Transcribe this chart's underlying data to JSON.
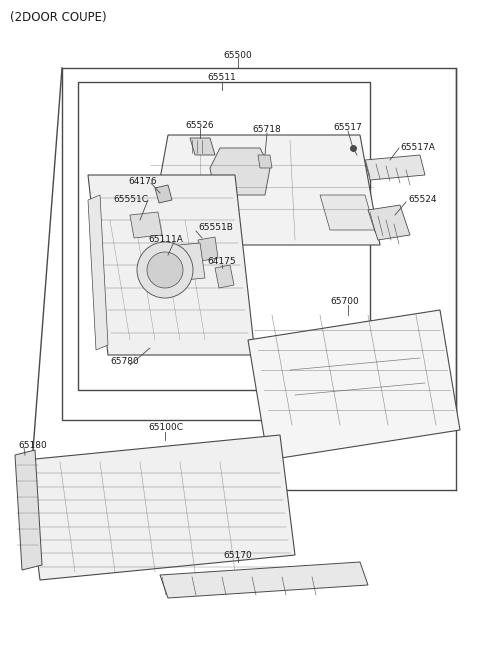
{
  "title": "(2DOOR COUPE)",
  "bg_color": "#ffffff",
  "line_color": "#4a4a4a",
  "text_color": "#1a1a1a",
  "label_fontsize": 6.5,
  "title_fontsize": 8.5,
  "figsize": [
    4.8,
    6.56
  ],
  "dpi": 100,
  "xlim": [
    0,
    480
  ],
  "ylim": [
    0,
    656
  ]
}
